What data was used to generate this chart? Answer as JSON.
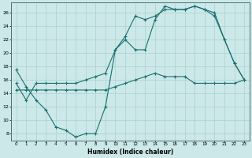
{
  "xlabel": "Humidex (Indice chaleur)",
  "background_color": "#cce8e8",
  "line_color": "#1a7070",
  "grid_color": "#aad0d0",
  "x_ticks": [
    0,
    1,
    2,
    3,
    4,
    5,
    6,
    7,
    8,
    9,
    10,
    11,
    12,
    13,
    14,
    15,
    16,
    17,
    18,
    19,
    20,
    21,
    22,
    23
  ],
  "y_ticks": [
    8,
    10,
    12,
    14,
    16,
    18,
    20,
    22,
    24,
    26
  ],
  "xlim": [
    -0.5,
    23.5
  ],
  "ylim": [
    7,
    27.5
  ],
  "series1_x": [
    0,
    1,
    2,
    3,
    4,
    5,
    6,
    7,
    8,
    9,
    10,
    11,
    12,
    13,
    14,
    15,
    16,
    17,
    18,
    19,
    20,
    21,
    22,
    23
  ],
  "series1_y": [
    17.5,
    15.0,
    13.0,
    11.5,
    9.0,
    8.5,
    7.5,
    8.0,
    8.0,
    12.0,
    20.5,
    22.0,
    20.5,
    20.5,
    25.0,
    27.0,
    26.5,
    26.5,
    27.0,
    26.5,
    25.5,
    22.0,
    18.5,
    16.0
  ],
  "series2_x": [
    0,
    1,
    2,
    3,
    4,
    5,
    6,
    7,
    8,
    9,
    10,
    11,
    12,
    13,
    14,
    15,
    16,
    17,
    18,
    19,
    20,
    21,
    22,
    23
  ],
  "series2_y": [
    14.5,
    14.5,
    14.5,
    14.5,
    14.5,
    14.5,
    14.5,
    14.5,
    14.5,
    14.5,
    15.0,
    15.5,
    16.0,
    16.5,
    17.0,
    16.5,
    16.5,
    16.5,
    15.5,
    15.5,
    15.5,
    15.5,
    15.5,
    16.0
  ],
  "series3_x": [
    0,
    1,
    2,
    3,
    4,
    5,
    6,
    7,
    8,
    9,
    10,
    11,
    12,
    13,
    14,
    15,
    16,
    17,
    18,
    19,
    20,
    21,
    22,
    23
  ],
  "series3_y": [
    15.5,
    13.0,
    15.5,
    15.5,
    15.5,
    15.5,
    15.5,
    16.0,
    16.5,
    17.0,
    20.5,
    22.5,
    25.5,
    25.0,
    25.5,
    26.5,
    26.5,
    26.5,
    27.0,
    26.5,
    26.0,
    22.0,
    18.5,
    16.0
  ]
}
